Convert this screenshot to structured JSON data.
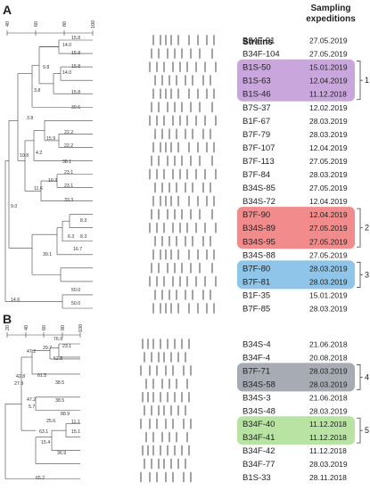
{
  "panel_a": {
    "letter": "A",
    "scale_ticks": [
      "40",
      "60",
      "80",
      "100"
    ],
    "header_strains": "Strains",
    "header_sampling": [
      "Sampling",
      "expeditions"
    ],
    "rows": [
      {
        "strain": "B34F-91",
        "date": "27.05.2019"
      },
      {
        "strain": "B34F-104",
        "date": "27.05.2019"
      },
      {
        "strain": "B1S-50",
        "date": "15.01.2019"
      },
      {
        "strain": "B1S-63",
        "date": "12.04.2019"
      },
      {
        "strain": "B1S-46",
        "date": "11.12.2018"
      },
      {
        "strain": "B7S-37",
        "date": "12.02.2019"
      },
      {
        "strain": "B1F-67",
        "date": "28.03.2019"
      },
      {
        "strain": "B7F-79",
        "date": "28.03.2019"
      },
      {
        "strain": "B7F-107",
        "date": "12.04.2019"
      },
      {
        "strain": "B7F-113",
        "date": "27.05.2019"
      },
      {
        "strain": "B7F-84",
        "date": "28.03.2019"
      },
      {
        "strain": "B34S-85",
        "date": "27.05.2019"
      },
      {
        "strain": "B34S-72",
        "date": "12.04.2019"
      },
      {
        "strain": "B7F-90",
        "date": "12.04.2019"
      },
      {
        "strain": "B34S-89",
        "date": "27.05.2019"
      },
      {
        "strain": "B34S-95",
        "date": "27.05.2019"
      },
      {
        "strain": "B34S-88",
        "date": "27.05.2019"
      },
      {
        "strain": "B7F-80",
        "date": "28.03.2019"
      },
      {
        "strain": "B7F-81",
        "date": "28.03.2019"
      },
      {
        "strain": "B1F-35",
        "date": "15.01.2019"
      },
      {
        "strain": "B7F-85",
        "date": "28.03.2019"
      }
    ],
    "groups": [
      {
        "label": "1",
        "color": "#c9a6dc",
        "first": 2,
        "last": 4
      },
      {
        "label": "2",
        "color": "#f28b8b",
        "first": 13,
        "last": 15
      },
      {
        "label": "3",
        "color": "#8ec5e8",
        "first": 17,
        "last": 18
      }
    ],
    "node_labels": [
      "15.8",
      "14.0",
      "15.8",
      "9.8",
      "15.8",
      "14.0",
      "15.8",
      "3.8",
      "39.6",
      "3.8",
      "15.9",
      "22.2",
      "22.2",
      "4.2",
      "38.1",
      "10.8",
      "23.1",
      "10.3",
      "23.1",
      "11.6",
      "33.3",
      "9.0",
      "8.3",
      "8.3",
      "6.3",
      "16.7",
      "39.1",
      "50.0",
      "14.6",
      "50.0"
    ]
  },
  "panel_b": {
    "letter": "B",
    "scale_ticks": [
      "20",
      "40",
      "60",
      "80",
      "100"
    ],
    "rows": [
      {
        "strain": "B34S-4",
        "date": "21.06.2018"
      },
      {
        "strain": "B34F-4",
        "date": "20.08.2018"
      },
      {
        "strain": "B7F-71",
        "date": "28.03.2019"
      },
      {
        "strain": "B34S-58",
        "date": "28.03.2019"
      },
      {
        "strain": "B34S-3",
        "date": "21.06.2018"
      },
      {
        "strain": "B34S-48",
        "date": "28.03.2019"
      },
      {
        "strain": "B34F-40",
        "date": "11.12.2018"
      },
      {
        "strain": "B34F-41",
        "date": "11.12.2018"
      },
      {
        "strain": "B34F-42",
        "date": "11.12.2018"
      },
      {
        "strain": "B34F-77",
        "date": "28.03.2019"
      },
      {
        "strain": "B1S-33",
        "date": "28.11.2018"
      }
    ],
    "groups": [
      {
        "label": "4",
        "color": "#a7abb3",
        "first": 2,
        "last": 3
      },
      {
        "label": "5",
        "color": "#b9e3a3",
        "first": 6,
        "last": 7
      }
    ],
    "node_labels": [
      "76.9",
      "23.1",
      "29.7",
      "47.2",
      "52.8",
      "42.8",
      "27.9",
      "61.5",
      "38.5",
      "47.2",
      "38.5",
      "5.7",
      "88.9",
      "11.1",
      "25.6",
      "63.1",
      "15.1",
      "15.4",
      "36.9",
      "65.2"
    ]
  }
}
